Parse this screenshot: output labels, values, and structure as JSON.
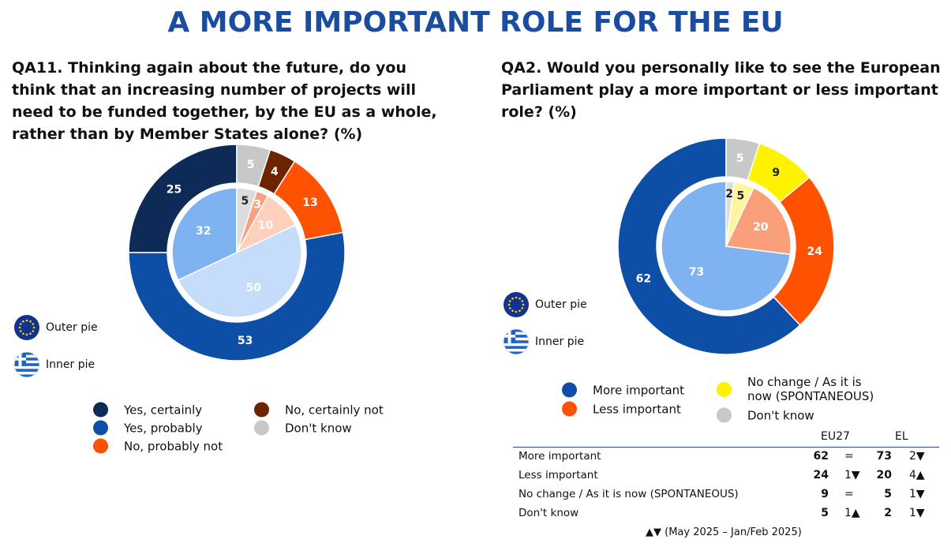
{
  "title": "A MORE IMPORTANT ROLE FOR THE EU",
  "chart_data": [
    {
      "type": "pie",
      "title": "QA11. Thinking again about the future, do you think that an increasing number of projects will need to be funded together, by the EU as a whole, rather than by Member States alone? (%)",
      "categories": [
        "Yes, certainly",
        "Yes, probably",
        "No, probably not",
        "No, certainly not",
        "Don't know"
      ],
      "series": [
        {
          "name": "Outer pie",
          "colors": [
            "#0d2b56",
            "#0d4ea6",
            "#ff5200",
            "#6b2300",
            "#c8c8c8"
          ],
          "values": [
            25,
            53,
            13,
            4,
            5
          ]
        },
        {
          "name": "Inner pie",
          "colors": [
            "#7fb2f0",
            "#c5dcfb",
            "#ffd0bb",
            "#f7a17f",
            "#dcdcdc"
          ],
          "values": [
            32,
            50,
            10,
            3,
            5
          ]
        }
      ]
    },
    {
      "type": "pie",
      "title": "QA2. Would you personally like to see the European Parliament play a more important or less important role? (%)",
      "categories": [
        "More important",
        "Less important",
        "No change / As it is now (SPONTANEOUS)",
        "Don't know"
      ],
      "series": [
        {
          "name": "Outer pie",
          "colors": [
            "#0d4ea6",
            "#ff5200",
            "#fff200",
            "#c8c8c8"
          ],
          "values": [
            62,
            24,
            9,
            5
          ]
        },
        {
          "name": "Inner pie",
          "colors": [
            "#7fb2f0",
            "#f9a07a",
            "#fff59d",
            "#dcdcdc"
          ],
          "values": [
            73,
            20,
            5,
            2
          ]
        }
      ]
    }
  ],
  "table": {
    "columns": [
      "EU27",
      "EL"
    ],
    "rows": [
      [
        "More important",
        62,
        "=",
        73,
        "2▼"
      ],
      [
        "Less important",
        24,
        "1▼",
        20,
        "4▲"
      ],
      [
        "No change / As it is now (SPONTANEOUS)",
        9,
        "=",
        5,
        "1▼"
      ],
      [
        "Don't know",
        5,
        "1▲",
        2,
        "1▼"
      ]
    ],
    "note": "▲▼ (May 2025 – Jan/Feb 2025)"
  }
}
